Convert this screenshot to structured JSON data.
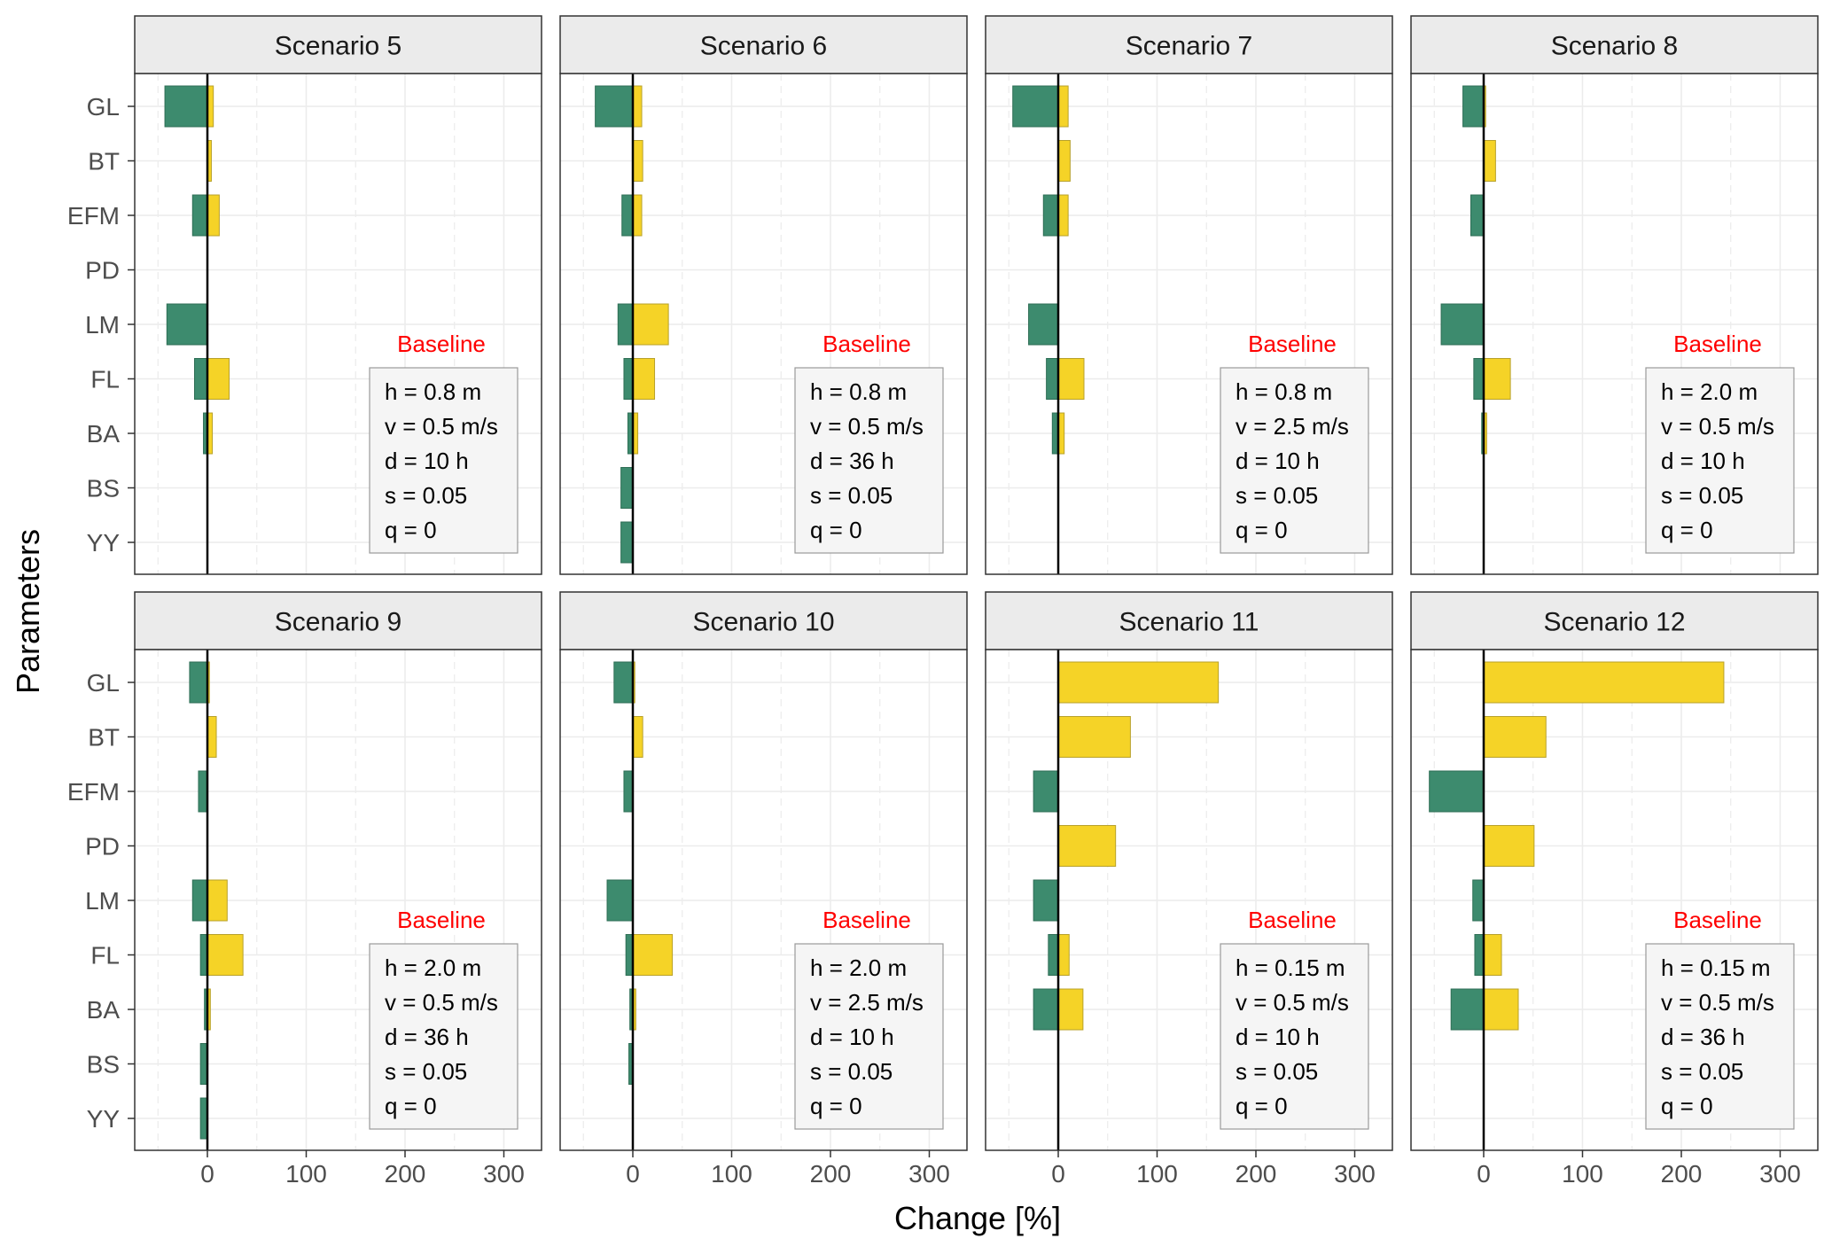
{
  "chart_data": {
    "type": "bar",
    "orientation": "horizontal",
    "layout": "facet grid 2 rows x 4 columns, shared axes",
    "xlabel": "Change [%]",
    "ylabel": "Parameters",
    "xlim": [
      -70,
      335
    ],
    "xticks": [
      0,
      100,
      200,
      300
    ],
    "grid": true,
    "legend": "none",
    "parameters": [
      "GL",
      "BT",
      "EFM",
      "PD",
      "LM",
      "FL",
      "BA",
      "BS",
      "YY"
    ],
    "colors": {
      "decrease": "#3d8b6e",
      "increase": "#f5d327",
      "strip": "#ebebeb",
      "baseline_label": "#ff0000"
    },
    "panels": [
      {
        "title": "Scenario 5",
        "baseline_label": "Baseline",
        "baseline": [
          "h = 0.8 m",
          "v = 0.5 m/s",
          "d = 10 h",
          "s = 0.05",
          "q = 0"
        ],
        "decrease": [
          -43,
          0,
          -15,
          0,
          -41,
          -13,
          -4,
          0,
          0
        ],
        "increase": [
          6,
          4,
          12,
          0,
          0,
          22,
          5,
          0,
          0
        ]
      },
      {
        "title": "Scenario 6",
        "baseline_label": "Baseline",
        "baseline": [
          "h = 0.8 m",
          "v = 0.5 m/s",
          "d = 36 h",
          "s = 0.05",
          "q = 0"
        ],
        "decrease": [
          -38,
          0,
          -11,
          0,
          -15,
          -9,
          -5,
          -12,
          -12
        ],
        "increase": [
          9,
          10,
          9,
          0,
          36,
          22,
          5,
          0,
          0
        ]
      },
      {
        "title": "Scenario 7",
        "baseline_label": "Baseline",
        "baseline": [
          "h = 0.8 m",
          "v = 2.5 m/s",
          "d = 10 h",
          "s = 0.05",
          "q = 0"
        ],
        "decrease": [
          -46,
          0,
          -15,
          0,
          -30,
          -12,
          -6,
          0,
          0
        ],
        "increase": [
          10,
          12,
          10,
          0,
          0,
          26,
          6,
          0,
          0
        ]
      },
      {
        "title": "Scenario 8",
        "baseline_label": "Baseline",
        "baseline": [
          "h = 2.0 m",
          "v = 0.5 m/s",
          "d = 10 h",
          "s = 0.05",
          "q = 0"
        ],
        "decrease": [
          -21,
          0,
          -13,
          0,
          -43,
          -10,
          -2,
          0,
          0
        ],
        "increase": [
          2,
          12,
          0,
          0,
          0,
          27,
          3,
          0,
          0
        ]
      },
      {
        "title": "Scenario 9",
        "baseline_label": "Baseline",
        "baseline": [
          "h = 2.0 m",
          "v = 0.5 m/s",
          "d = 36 h",
          "s = 0.05",
          "q = 0"
        ],
        "decrease": [
          -18,
          0,
          -9,
          0,
          -15,
          -7,
          -3,
          -7,
          -7
        ],
        "increase": [
          2,
          9,
          0,
          0,
          20,
          36,
          3,
          0,
          0
        ]
      },
      {
        "title": "Scenario 10",
        "baseline_label": "Baseline",
        "baseline": [
          "h = 2.0 m",
          "v = 2.5 m/s",
          "d = 10 h",
          "s = 0.05",
          "q = 0"
        ],
        "decrease": [
          -19,
          0,
          -9,
          0,
          -26,
          -7,
          -3,
          -4,
          0
        ],
        "increase": [
          2,
          10,
          0,
          0,
          0,
          40,
          3,
          0,
          0
        ]
      },
      {
        "title": "Scenario 11",
        "baseline_label": "Baseline",
        "baseline": [
          "h = 0.15 m",
          "v = 0.5 m/s",
          "d = 10 h",
          "s = 0.05",
          "q = 0"
        ],
        "decrease": [
          0,
          0,
          -25,
          0,
          -25,
          -10,
          -25,
          0,
          0
        ],
        "increase": [
          162,
          73,
          0,
          58,
          0,
          11,
          25,
          0,
          0
        ]
      },
      {
        "title": "Scenario 12",
        "baseline_label": "Baseline",
        "baseline": [
          "h = 0.15 m",
          "v = 0.5 m/s",
          "d = 36 h",
          "s = 0.05",
          "q = 0"
        ],
        "decrease": [
          0,
          0,
          -55,
          0,
          -11,
          -9,
          -33,
          0,
          0
        ],
        "increase": [
          243,
          63,
          0,
          51,
          0,
          18,
          35,
          0,
          0
        ]
      }
    ]
  }
}
